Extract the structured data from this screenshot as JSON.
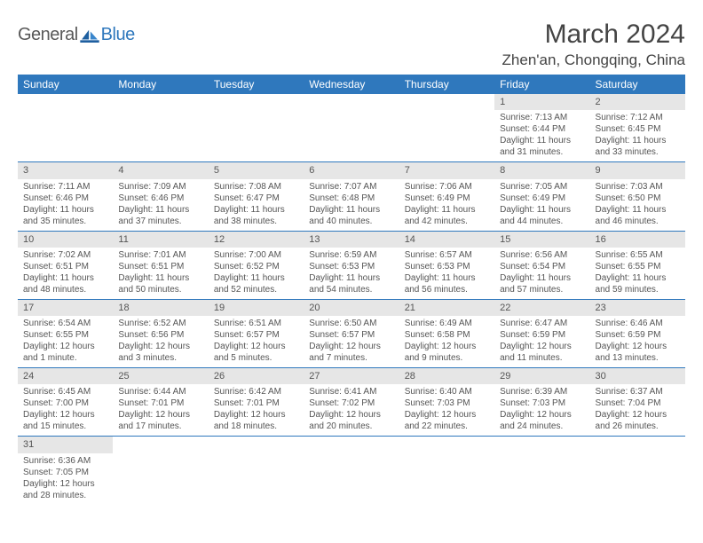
{
  "brand": {
    "part1": "General",
    "part2": "Blue"
  },
  "title": "March 2024",
  "location": "Zhen'an, Chongqing, China",
  "colors": {
    "header_bg": "#2f78bd",
    "header_text": "#ffffff",
    "daynum_bg": "#e6e6e6",
    "text": "#555555",
    "border": "#2f78bd"
  },
  "typography": {
    "title_fontsize": 30,
    "location_fontsize": 17,
    "weekday_fontsize": 12,
    "daynum_fontsize": 11,
    "info_fontsize": 10
  },
  "weekdays": [
    "Sunday",
    "Monday",
    "Tuesday",
    "Wednesday",
    "Thursday",
    "Friday",
    "Saturday"
  ],
  "weeks": [
    [
      null,
      null,
      null,
      null,
      null,
      {
        "n": "1",
        "sr": "Sunrise: 7:13 AM",
        "ss": "Sunset: 6:44 PM",
        "dl1": "Daylight: 11 hours",
        "dl2": "and 31 minutes."
      },
      {
        "n": "2",
        "sr": "Sunrise: 7:12 AM",
        "ss": "Sunset: 6:45 PM",
        "dl1": "Daylight: 11 hours",
        "dl2": "and 33 minutes."
      }
    ],
    [
      {
        "n": "3",
        "sr": "Sunrise: 7:11 AM",
        "ss": "Sunset: 6:46 PM",
        "dl1": "Daylight: 11 hours",
        "dl2": "and 35 minutes."
      },
      {
        "n": "4",
        "sr": "Sunrise: 7:09 AM",
        "ss": "Sunset: 6:46 PM",
        "dl1": "Daylight: 11 hours",
        "dl2": "and 37 minutes."
      },
      {
        "n": "5",
        "sr": "Sunrise: 7:08 AM",
        "ss": "Sunset: 6:47 PM",
        "dl1": "Daylight: 11 hours",
        "dl2": "and 38 minutes."
      },
      {
        "n": "6",
        "sr": "Sunrise: 7:07 AM",
        "ss": "Sunset: 6:48 PM",
        "dl1": "Daylight: 11 hours",
        "dl2": "and 40 minutes."
      },
      {
        "n": "7",
        "sr": "Sunrise: 7:06 AM",
        "ss": "Sunset: 6:49 PM",
        "dl1": "Daylight: 11 hours",
        "dl2": "and 42 minutes."
      },
      {
        "n": "8",
        "sr": "Sunrise: 7:05 AM",
        "ss": "Sunset: 6:49 PM",
        "dl1": "Daylight: 11 hours",
        "dl2": "and 44 minutes."
      },
      {
        "n": "9",
        "sr": "Sunrise: 7:03 AM",
        "ss": "Sunset: 6:50 PM",
        "dl1": "Daylight: 11 hours",
        "dl2": "and 46 minutes."
      }
    ],
    [
      {
        "n": "10",
        "sr": "Sunrise: 7:02 AM",
        "ss": "Sunset: 6:51 PM",
        "dl1": "Daylight: 11 hours",
        "dl2": "and 48 minutes."
      },
      {
        "n": "11",
        "sr": "Sunrise: 7:01 AM",
        "ss": "Sunset: 6:51 PM",
        "dl1": "Daylight: 11 hours",
        "dl2": "and 50 minutes."
      },
      {
        "n": "12",
        "sr": "Sunrise: 7:00 AM",
        "ss": "Sunset: 6:52 PM",
        "dl1": "Daylight: 11 hours",
        "dl2": "and 52 minutes."
      },
      {
        "n": "13",
        "sr": "Sunrise: 6:59 AM",
        "ss": "Sunset: 6:53 PM",
        "dl1": "Daylight: 11 hours",
        "dl2": "and 54 minutes."
      },
      {
        "n": "14",
        "sr": "Sunrise: 6:57 AM",
        "ss": "Sunset: 6:53 PM",
        "dl1": "Daylight: 11 hours",
        "dl2": "and 56 minutes."
      },
      {
        "n": "15",
        "sr": "Sunrise: 6:56 AM",
        "ss": "Sunset: 6:54 PM",
        "dl1": "Daylight: 11 hours",
        "dl2": "and 57 minutes."
      },
      {
        "n": "16",
        "sr": "Sunrise: 6:55 AM",
        "ss": "Sunset: 6:55 PM",
        "dl1": "Daylight: 11 hours",
        "dl2": "and 59 minutes."
      }
    ],
    [
      {
        "n": "17",
        "sr": "Sunrise: 6:54 AM",
        "ss": "Sunset: 6:55 PM",
        "dl1": "Daylight: 12 hours",
        "dl2": "and 1 minute."
      },
      {
        "n": "18",
        "sr": "Sunrise: 6:52 AM",
        "ss": "Sunset: 6:56 PM",
        "dl1": "Daylight: 12 hours",
        "dl2": "and 3 minutes."
      },
      {
        "n": "19",
        "sr": "Sunrise: 6:51 AM",
        "ss": "Sunset: 6:57 PM",
        "dl1": "Daylight: 12 hours",
        "dl2": "and 5 minutes."
      },
      {
        "n": "20",
        "sr": "Sunrise: 6:50 AM",
        "ss": "Sunset: 6:57 PM",
        "dl1": "Daylight: 12 hours",
        "dl2": "and 7 minutes."
      },
      {
        "n": "21",
        "sr": "Sunrise: 6:49 AM",
        "ss": "Sunset: 6:58 PM",
        "dl1": "Daylight: 12 hours",
        "dl2": "and 9 minutes."
      },
      {
        "n": "22",
        "sr": "Sunrise: 6:47 AM",
        "ss": "Sunset: 6:59 PM",
        "dl1": "Daylight: 12 hours",
        "dl2": "and 11 minutes."
      },
      {
        "n": "23",
        "sr": "Sunrise: 6:46 AM",
        "ss": "Sunset: 6:59 PM",
        "dl1": "Daylight: 12 hours",
        "dl2": "and 13 minutes."
      }
    ],
    [
      {
        "n": "24",
        "sr": "Sunrise: 6:45 AM",
        "ss": "Sunset: 7:00 PM",
        "dl1": "Daylight: 12 hours",
        "dl2": "and 15 minutes."
      },
      {
        "n": "25",
        "sr": "Sunrise: 6:44 AM",
        "ss": "Sunset: 7:01 PM",
        "dl1": "Daylight: 12 hours",
        "dl2": "and 17 minutes."
      },
      {
        "n": "26",
        "sr": "Sunrise: 6:42 AM",
        "ss": "Sunset: 7:01 PM",
        "dl1": "Daylight: 12 hours",
        "dl2": "and 18 minutes."
      },
      {
        "n": "27",
        "sr": "Sunrise: 6:41 AM",
        "ss": "Sunset: 7:02 PM",
        "dl1": "Daylight: 12 hours",
        "dl2": "and 20 minutes."
      },
      {
        "n": "28",
        "sr": "Sunrise: 6:40 AM",
        "ss": "Sunset: 7:03 PM",
        "dl1": "Daylight: 12 hours",
        "dl2": "and 22 minutes."
      },
      {
        "n": "29",
        "sr": "Sunrise: 6:39 AM",
        "ss": "Sunset: 7:03 PM",
        "dl1": "Daylight: 12 hours",
        "dl2": "and 24 minutes."
      },
      {
        "n": "30",
        "sr": "Sunrise: 6:37 AM",
        "ss": "Sunset: 7:04 PM",
        "dl1": "Daylight: 12 hours",
        "dl2": "and 26 minutes."
      }
    ],
    [
      {
        "n": "31",
        "sr": "Sunrise: 6:36 AM",
        "ss": "Sunset: 7:05 PM",
        "dl1": "Daylight: 12 hours",
        "dl2": "and 28 minutes."
      },
      null,
      null,
      null,
      null,
      null,
      null
    ]
  ]
}
